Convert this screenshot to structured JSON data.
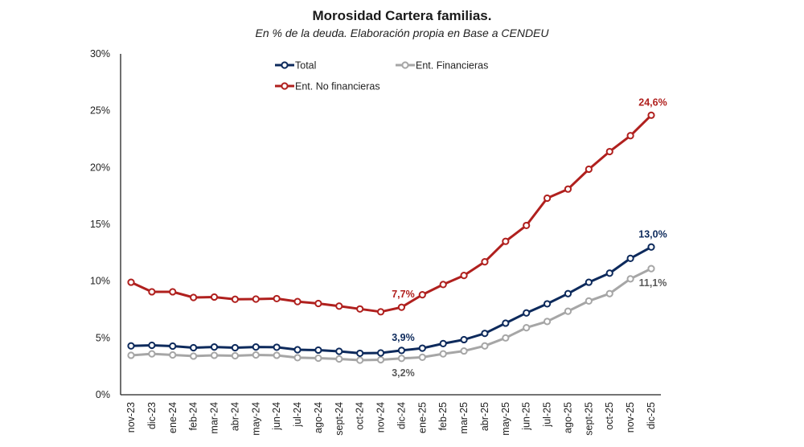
{
  "chart_data": {
    "type": "line",
    "title": "Morosidad Cartera familias.",
    "subtitle": "En % de la deuda. Elaboración propia en Base a CENDEU",
    "xlabel": "",
    "ylabel": "",
    "ylim": [
      0,
      30
    ],
    "yticks": [
      0,
      5,
      10,
      15,
      20,
      25,
      30
    ],
    "ytick_labels": [
      "0%",
      "5%",
      "10%",
      "15%",
      "20%",
      "25%",
      "30%"
    ],
    "grid": false,
    "legend_position": "top-center",
    "categories": [
      "nov-23",
      "dic-23",
      "ene-24",
      "feb-24",
      "mar-24",
      "abr-24",
      "may-24",
      "jun-24",
      "jul-24",
      "ago-24",
      "sept-24",
      "oct-24",
      "nov-24",
      "dic-24",
      "ene-25",
      "feb-25",
      "mar-25",
      "abr-25",
      "may-25",
      "jun-25",
      "jul-25",
      "ago-25",
      "sept-25",
      "oct-25",
      "nov-25",
      "dic-25"
    ],
    "series": [
      {
        "name": "Total",
        "color": "#0d2a5c",
        "values": [
          4.3,
          4.35,
          4.28,
          4.14,
          4.2,
          4.14,
          4.2,
          4.18,
          3.96,
          3.93,
          3.82,
          3.65,
          3.68,
          3.9,
          4.1,
          4.5,
          4.85,
          5.4,
          6.3,
          7.2,
          8.0,
          8.9,
          9.9,
          10.7,
          12.0,
          13.0
        ],
        "annotations": [
          {
            "index": 13,
            "label": "3,9%",
            "position": "above"
          },
          {
            "index": 25,
            "label": "13,0%",
            "position": "above"
          }
        ]
      },
      {
        "name": "Ent. Financieras",
        "color": "#a6a6a6",
        "label_color": "#595959",
        "values": [
          3.47,
          3.6,
          3.5,
          3.4,
          3.47,
          3.43,
          3.5,
          3.47,
          3.26,
          3.22,
          3.15,
          3.04,
          3.08,
          3.2,
          3.3,
          3.6,
          3.85,
          4.3,
          5.0,
          5.9,
          6.45,
          7.35,
          8.25,
          8.9,
          10.2,
          11.1
        ],
        "annotations": [
          {
            "index": 13,
            "label": "3,2%",
            "position": "below"
          },
          {
            "index": 25,
            "label": "11,1%",
            "position": "below"
          }
        ]
      },
      {
        "name": "Ent. No financieras",
        "color": "#b0201e",
        "values": [
          9.9,
          9.06,
          9.06,
          8.56,
          8.6,
          8.4,
          8.42,
          8.46,
          8.2,
          8.03,
          7.8,
          7.55,
          7.3,
          7.7,
          8.8,
          9.7,
          10.5,
          11.7,
          13.5,
          14.9,
          17.3,
          18.1,
          19.85,
          21.4,
          22.8,
          24.6
        ],
        "annotations": [
          {
            "index": 13,
            "label": "7,7%",
            "position": "above"
          },
          {
            "index": 25,
            "label": "24,6%",
            "position": "above"
          }
        ]
      }
    ]
  }
}
